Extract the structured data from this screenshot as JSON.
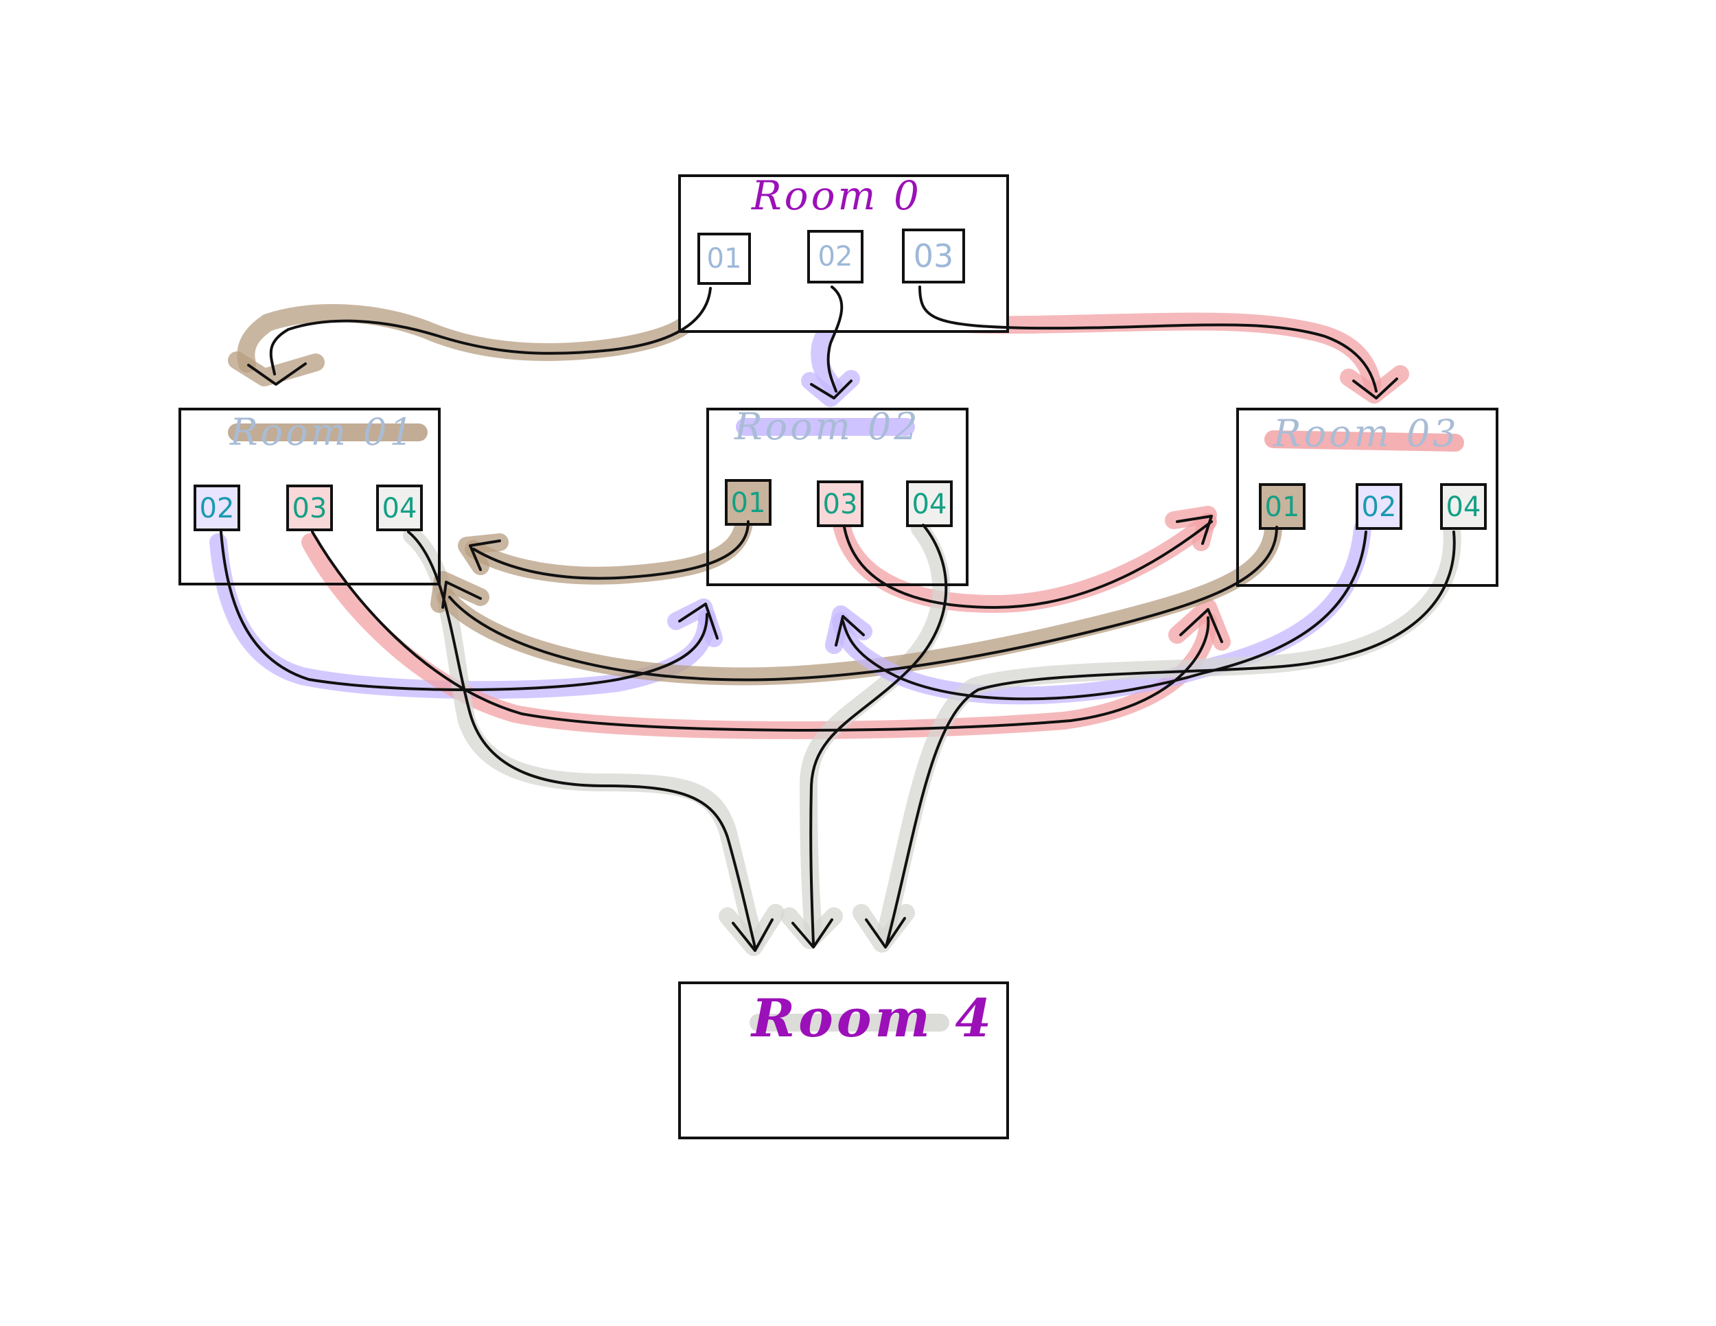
{
  "diagram": {
    "colors": {
      "brown": "#b79d82",
      "purple": "#c5b7ff",
      "red": "#f2a2a5",
      "gray": "#d6d6d2",
      "title_purple": "#9b10b8",
      "title_blue": "#a9bcd6",
      "port_green": "#13a085",
      "port_blue": "#9db8d8"
    },
    "rooms": [
      {
        "id": "room0",
        "title": "Room 0",
        "ports": [
          "01",
          "02",
          "03"
        ]
      },
      {
        "id": "room01",
        "title": "Room 01",
        "ports": [
          "02",
          "03",
          "04"
        ]
      },
      {
        "id": "room02",
        "title": "Room 02",
        "ports": [
          "01",
          "03",
          "04"
        ]
      },
      {
        "id": "room03",
        "title": "Room 03",
        "ports": [
          "01",
          "02",
          "04"
        ]
      },
      {
        "id": "room4",
        "title": "Room 4",
        "ports": []
      }
    ],
    "connections": [
      {
        "from": "Room 0 / 01",
        "to": "Room 01",
        "color": "brown"
      },
      {
        "from": "Room 0 / 02",
        "to": "Room 02",
        "color": "purple"
      },
      {
        "from": "Room 0 / 03",
        "to": "Room 03",
        "color": "red"
      },
      {
        "from": "Room 01 / 02",
        "to": "Room 02",
        "color": "purple"
      },
      {
        "from": "Room 01 / 03",
        "to": "Room 03",
        "color": "red"
      },
      {
        "from": "Room 01 / 04",
        "to": "Room 4",
        "color": "gray"
      },
      {
        "from": "Room 02 / 01",
        "to": "Room 01",
        "color": "brown"
      },
      {
        "from": "Room 02 / 03",
        "to": "Room 03",
        "color": "red"
      },
      {
        "from": "Room 02 / 04",
        "to": "Room 4",
        "color": "gray"
      },
      {
        "from": "Room 03 / 01",
        "to": "Room 01",
        "color": "brown"
      },
      {
        "from": "Room 03 / 02",
        "to": "Room 02",
        "color": "purple"
      },
      {
        "from": "Room 03 / 04",
        "to": "Room 4",
        "color": "gray"
      }
    ]
  }
}
